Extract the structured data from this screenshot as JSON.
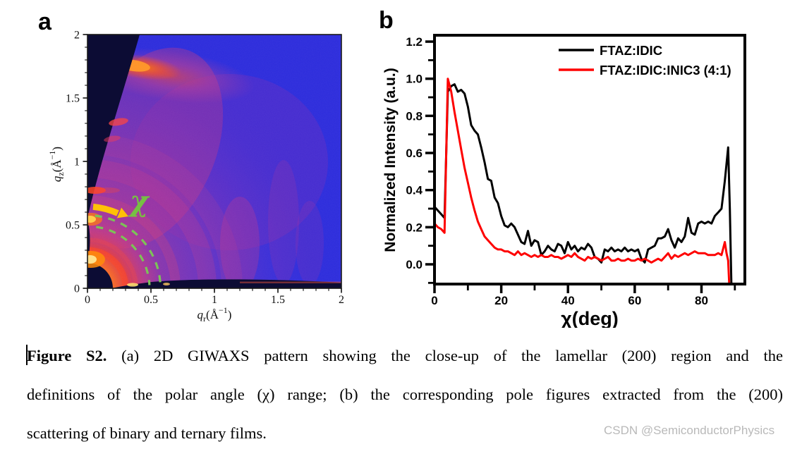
{
  "figure": {
    "panel_a_label": "a",
    "panel_b_label": "b"
  },
  "panel_a": {
    "x_axis": {
      "variable": "q",
      "subscript": "r",
      "unit_open": "(Å",
      "exponent": "−1",
      "unit_close": ")",
      "tick_labels": [
        "0",
        "0.5",
        "1",
        "1.5",
        "2"
      ],
      "tick_values": [
        0,
        0.5,
        1,
        1.5,
        2
      ]
    },
    "y_axis": {
      "variable": "q",
      "subscript": "z",
      "unit_open": "(Å",
      "exponent": "−1",
      "unit_close": ")",
      "tick_labels": [
        "0",
        "0.5",
        "1",
        "1.5",
        "2"
      ],
      "tick_values": [
        0,
        0.5,
        1,
        1.5,
        2
      ]
    },
    "annotations": {
      "chi_symbol": "χ",
      "chi_color": "#76c043",
      "dashed_arc_color": "#7cc356",
      "arrow_color": "#ffc107"
    },
    "colors": {
      "background_blue": "#2b2bdc",
      "haze_magenta": "#cc3f8e",
      "glow_orange": "#ff7a1a",
      "dark_navy": "#0c0c34"
    }
  },
  "chart_data": [
    {
      "type": "heatmap",
      "panel": "a",
      "description": "2D GIWAXS detector pattern, close-up of the lamellar (200) region",
      "xlabel": "qr (Å−1)",
      "ylabel": "qz (Å−1)",
      "xlim": [
        0,
        2
      ],
      "ylim": [
        0,
        2
      ],
      "features": [
        "bright lamellar (200) spot on qz axis near qz ≈ 0.53 Å−1",
        "bright spot on qz axis near qz ≈ 0.27 Å−1",
        "diffuse π–π stacking arc near qz ≈ 1.75 Å−1",
        "dark beamstop shadow at origin (r ≈ 0.2 Å−1)",
        "dark missing wedge in upper-left of detector",
        "green dashed ROI arcs spanning q ≈ 0.49–0.58 Å−1",
        "yellow curved arrow marking polar angle χ sweep"
      ]
    },
    {
      "type": "line",
      "panel": "b",
      "title": "",
      "xlabel": "χ(deg)",
      "ylabel": "Normalized Intensity (a.u.)",
      "xlim": [
        0,
        93
      ],
      "ylim": [
        -0.11,
        1.23
      ],
      "x_ticks": [
        0,
        20,
        40,
        60,
        80
      ],
      "x_minor_ticks": [
        10,
        30,
        50,
        70,
        90
      ],
      "y_ticks": [
        0.0,
        0.2,
        0.4,
        0.6,
        0.8,
        1.0,
        1.2
      ],
      "y_tick_labels": [
        "0.0",
        "0.2",
        "0.4",
        "0.6",
        "0.8",
        "1.0",
        "1.2"
      ],
      "y_minor_ticks": [
        -0.1,
        0.1,
        0.3,
        0.5,
        0.7,
        0.9,
        1.1
      ],
      "grid": false,
      "legend_position": "top-right",
      "series": [
        {
          "name": "FTAZ:IDIC",
          "color": "#000000",
          "points": [
            [
              0,
              0.31
            ],
            [
              1,
              0.29
            ],
            [
              2,
              0.27
            ],
            [
              3,
              0.25
            ],
            [
              4,
              0.93
            ],
            [
              5,
              0.96
            ],
            [
              6,
              0.97
            ],
            [
              7,
              0.93
            ],
            [
              8,
              0.94
            ],
            [
              9,
              0.92
            ],
            [
              10,
              0.85
            ],
            [
              11,
              0.75
            ],
            [
              12,
              0.72
            ],
            [
              13,
              0.7
            ],
            [
              14,
              0.63
            ],
            [
              15,
              0.55
            ],
            [
              16,
              0.46
            ],
            [
              17,
              0.45
            ],
            [
              18,
              0.36
            ],
            [
              19,
              0.33
            ],
            [
              20,
              0.26
            ],
            [
              21,
              0.21
            ],
            [
              22,
              0.2
            ],
            [
              23,
              0.22
            ],
            [
              24,
              0.2
            ],
            [
              25,
              0.16
            ],
            [
              26,
              0.12
            ],
            [
              27,
              0.11
            ],
            [
              28,
              0.18
            ],
            [
              29,
              0.1
            ],
            [
              30,
              0.13
            ],
            [
              31,
              0.12
            ],
            [
              32,
              0.05
            ],
            [
              33,
              0.07
            ],
            [
              34,
              0.1
            ],
            [
              35,
              0.08
            ],
            [
              36,
              0.07
            ],
            [
              37,
              0.11
            ],
            [
              38,
              0.1
            ],
            [
              39,
              0.06
            ],
            [
              40,
              0.12
            ],
            [
              41,
              0.08
            ],
            [
              42,
              0.1
            ],
            [
              43,
              0.07
            ],
            [
              44,
              0.09
            ],
            [
              45,
              0.08
            ],
            [
              46,
              0.11
            ],
            [
              47,
              0.09
            ],
            [
              48,
              0.04
            ],
            [
              49,
              0.03
            ],
            [
              50,
              0.01
            ],
            [
              51,
              0.08
            ],
            [
              52,
              0.07
            ],
            [
              53,
              0.09
            ],
            [
              54,
              0.07
            ],
            [
              55,
              0.08
            ],
            [
              56,
              0.07
            ],
            [
              57,
              0.09
            ],
            [
              58,
              0.07
            ],
            [
              59,
              0.08
            ],
            [
              60,
              0.07
            ],
            [
              61,
              0.08
            ],
            [
              62,
              0.03
            ],
            [
              63,
              0.01
            ],
            [
              64,
              0.08
            ],
            [
              65,
              0.09
            ],
            [
              66,
              0.1
            ],
            [
              67,
              0.14
            ],
            [
              68,
              0.14
            ],
            [
              69,
              0.15
            ],
            [
              70,
              0.19
            ],
            [
              71,
              0.13
            ],
            [
              72,
              0.09
            ],
            [
              73,
              0.14
            ],
            [
              74,
              0.12
            ],
            [
              75,
              0.15
            ],
            [
              76,
              0.25
            ],
            [
              77,
              0.17
            ],
            [
              78,
              0.16
            ],
            [
              79,
              0.22
            ],
            [
              80,
              0.23
            ],
            [
              81,
              0.22
            ],
            [
              82,
              0.23
            ],
            [
              83,
              0.22
            ],
            [
              84,
              0.26
            ],
            [
              85,
              0.28
            ],
            [
              86,
              0.3
            ],
            [
              87,
              0.45
            ],
            [
              88,
              0.63
            ],
            [
              88.5,
              0.3
            ],
            [
              89,
              -0.15
            ]
          ]
        },
        {
          "name": "FTAZ:IDIC:INIC3 (4:1)",
          "color": "#fe0000",
          "points": [
            [
              0,
              0.22
            ],
            [
              1,
              0.2
            ],
            [
              2,
              0.19
            ],
            [
              3,
              0.17
            ],
            [
              4,
              1.0
            ],
            [
              5,
              0.93
            ],
            [
              6,
              0.82
            ],
            [
              7,
              0.72
            ],
            [
              8,
              0.62
            ],
            [
              9,
              0.52
            ],
            [
              10,
              0.44
            ],
            [
              11,
              0.36
            ],
            [
              12,
              0.29
            ],
            [
              13,
              0.23
            ],
            [
              14,
              0.19
            ],
            [
              15,
              0.15
            ],
            [
              16,
              0.13
            ],
            [
              17,
              0.11
            ],
            [
              18,
              0.09
            ],
            [
              19,
              0.08
            ],
            [
              20,
              0.08
            ],
            [
              21,
              0.07
            ],
            [
              22,
              0.07
            ],
            [
              23,
              0.06
            ],
            [
              24,
              0.05
            ],
            [
              25,
              0.07
            ],
            [
              26,
              0.05
            ],
            [
              27,
              0.06
            ],
            [
              28,
              0.05
            ],
            [
              29,
              0.04
            ],
            [
              30,
              0.05
            ],
            [
              31,
              0.04
            ],
            [
              32,
              0.05
            ],
            [
              33,
              0.04
            ],
            [
              34,
              0.04
            ],
            [
              35,
              0.05
            ],
            [
              36,
              0.04
            ],
            [
              37,
              0.04
            ],
            [
              38,
              0.03
            ],
            [
              39,
              0.04
            ],
            [
              40,
              0.05
            ],
            [
              41,
              0.04
            ],
            [
              42,
              0.06
            ],
            [
              43,
              0.04
            ],
            [
              44,
              0.03
            ],
            [
              45,
              0.02
            ],
            [
              46,
              0.04
            ],
            [
              47,
              0.03
            ],
            [
              48,
              0.04
            ],
            [
              49,
              0.03
            ],
            [
              50,
              0.02
            ],
            [
              51,
              0.03
            ],
            [
              52,
              0.04
            ],
            [
              53,
              0.02
            ],
            [
              54,
              0.02
            ],
            [
              55,
              0.03
            ],
            [
              56,
              0.02
            ],
            [
              57,
              0.02
            ],
            [
              58,
              0.03
            ],
            [
              59,
              0.02
            ],
            [
              60,
              0.02
            ],
            [
              61,
              0.03
            ],
            [
              62,
              0.02
            ],
            [
              63,
              0.03
            ],
            [
              64,
              0.02
            ],
            [
              65,
              0.01
            ],
            [
              66,
              0.02
            ],
            [
              67,
              0.03
            ],
            [
              68,
              0.02
            ],
            [
              69,
              0.04
            ],
            [
              70,
              0.06
            ],
            [
              71,
              0.03
            ],
            [
              72,
              0.05
            ],
            [
              73,
              0.04
            ],
            [
              74,
              0.05
            ],
            [
              75,
              0.06
            ],
            [
              76,
              0.05
            ],
            [
              77,
              0.06
            ],
            [
              78,
              0.07
            ],
            [
              79,
              0.06
            ],
            [
              80,
              0.06
            ],
            [
              81,
              0.06
            ],
            [
              82,
              0.05
            ],
            [
              83,
              0.05
            ],
            [
              84,
              0.05
            ],
            [
              85,
              0.06
            ],
            [
              86,
              0.05
            ],
            [
              87,
              0.12
            ],
            [
              87.5,
              0.06
            ],
            [
              88,
              0.02
            ],
            [
              88.5,
              -0.18
            ]
          ]
        }
      ]
    }
  ],
  "caption": {
    "lines": [
      {
        "bold": "Figure S2.",
        "text": " (a) 2D GIWAXS pattern showing the close-up of the lamellar (200) region and the"
      },
      {
        "bold": "",
        "text": "definitions of the polar angle (χ) range; (b) the corresponding pole figures extracted from the (200)"
      },
      {
        "bold": "",
        "text": "scattering of binary and ternary films."
      }
    ]
  },
  "watermark": "CSDN @SemiconductorPhysics"
}
